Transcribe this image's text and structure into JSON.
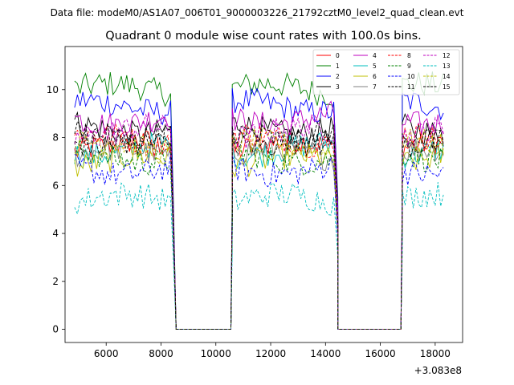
{
  "figure": {
    "suptitle": "Data file: modeM0/AS1A07_006T01_9000003226_21792cztM0_level2_quad_clean.evt"
  },
  "chart_data": {
    "type": "line",
    "title": "Quadrant 0 module wise count rates with 100.0s bins.",
    "xlabel": "",
    "ylabel": "",
    "x_offset_label": "+3.083e8",
    "xlim": [
      4500,
      19000
    ],
    "ylim": [
      -0.55,
      11.8
    ],
    "x_ticks": [
      6000,
      8000,
      10000,
      12000,
      14000,
      16000,
      18000
    ],
    "x_tick_labels": [
      "6000",
      "8000",
      "10000",
      "12000",
      "14000",
      "16000",
      "18000"
    ],
    "y_ticks": [
      0,
      2,
      4,
      6,
      8,
      10
    ],
    "y_tick_labels": [
      "0",
      "2",
      "4",
      "6",
      "8",
      "10"
    ],
    "grid": false,
    "legend_position": "top-right",
    "bin_width": 100,
    "segments": [
      {
        "start": 4850,
        "end": 8350
      },
      {
        "start": 10600,
        "end": 14350
      },
      {
        "start": 16800,
        "end": 18350
      }
    ],
    "gaps": [
      {
        "start": 8550,
        "end": 10550
      },
      {
        "start": 14450,
        "end": 16750
      }
    ],
    "series": [
      {
        "name": "0",
        "color": "#ff0000",
        "dash": "solid",
        "mean": 7.6
      },
      {
        "name": "1",
        "color": "#008000",
        "dash": "solid",
        "mean": 10.0
      },
      {
        "name": "2",
        "color": "#0000ff",
        "dash": "solid",
        "mean": 9.3
      },
      {
        "name": "3",
        "color": "#000000",
        "dash": "solid",
        "mean": 8.4
      },
      {
        "name": "4",
        "color": "#bf00bf",
        "dash": "solid",
        "mean": 8.8
      },
      {
        "name": "5",
        "color": "#00bfbf",
        "dash": "solid",
        "mean": 7.5
      },
      {
        "name": "6",
        "color": "#bfbf00",
        "dash": "solid",
        "mean": 7.0
      },
      {
        "name": "7",
        "color": "#808080",
        "dash": "solid",
        "mean": 7.3
      },
      {
        "name": "8",
        "color": "#ff0000",
        "dash": "dashed",
        "mean": 7.9
      },
      {
        "name": "9",
        "color": "#008000",
        "dash": "dashed",
        "mean": 7.2
      },
      {
        "name": "10",
        "color": "#0000ff",
        "dash": "dashed",
        "mean": 6.7
      },
      {
        "name": "11",
        "color": "#000000",
        "dash": "dashed",
        "mean": 7.9
      },
      {
        "name": "12",
        "color": "#bf00bf",
        "dash": "dashed",
        "mean": 8.2
      },
      {
        "name": "13",
        "color": "#00bfbf",
        "dash": "dashed",
        "mean": 5.4
      },
      {
        "name": "14",
        "color": "#bfbf00",
        "dash": "dashed",
        "mean": 7.6
      },
      {
        "name": "15",
        "color": "#000000",
        "dash": "dashed",
        "mean": 8.0
      }
    ]
  }
}
